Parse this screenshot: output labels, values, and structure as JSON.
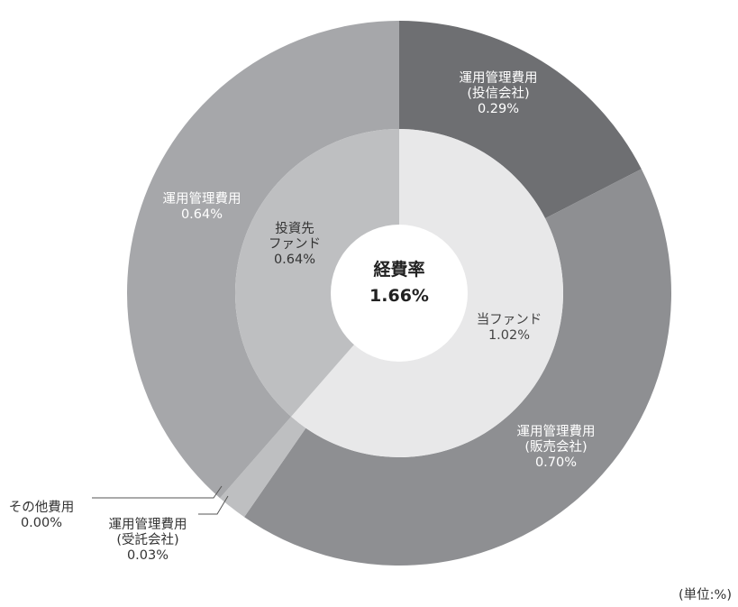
{
  "chart_data": {
    "type": "pie",
    "center_label": [
      "経費率",
      "1.66%"
    ],
    "unit_note": "(単位:%)",
    "inner_ring": [
      {
        "lines": [
          "当ファンド",
          "1.02%"
        ],
        "value": 1.02,
        "color": "#e8e8e9",
        "text_color": "#444444"
      },
      {
        "lines": [
          "投資先",
          "ファンド",
          "0.64%"
        ],
        "value": 0.64,
        "color": "#bebfc1",
        "text_color": "#333333"
      }
    ],
    "outer_ring": [
      {
        "lines": [
          "運用管理費用",
          "(投信会社)",
          "0.29%"
        ],
        "value": 0.29,
        "color": "#6e6f72",
        "text_color": "#ffffff"
      },
      {
        "lines": [
          "運用管理費用",
          "(販売会社)",
          "0.70%"
        ],
        "value": 0.7,
        "color": "#8e8f92",
        "text_color": "#ffffff"
      },
      {
        "lines": [
          "運用管理費用",
          "(受託会社)",
          "0.03%"
        ],
        "value": 0.03,
        "color": "#bebfc1",
        "text_color": "#333333"
      },
      {
        "lines": [
          "その他費用",
          "0.00%"
        ],
        "value": 0.0,
        "color": "#bebfc1",
        "text_color": "#333333"
      },
      {
        "lines": [
          "運用管理費用",
          "0.64%"
        ],
        "value": 0.64,
        "color": "#a6a7aa",
        "text_color": "#ffffff"
      }
    ]
  }
}
